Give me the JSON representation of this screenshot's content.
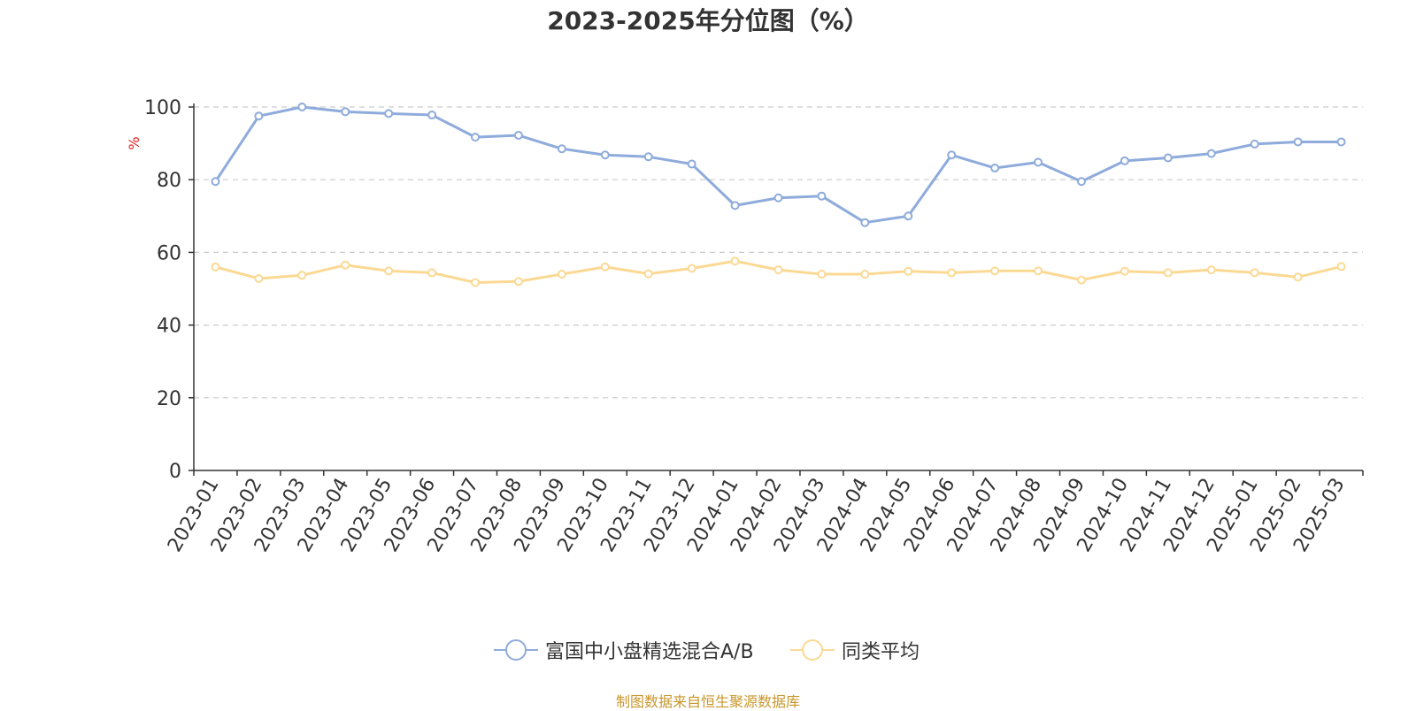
{
  "chart_data": {
    "type": "line",
    "title": "2023-2025年分位图（%）",
    "ylabel": "%",
    "ylim": [
      0,
      100
    ],
    "yticks": [
      0,
      20,
      40,
      60,
      80,
      100
    ],
    "grid": true,
    "legend_position": "bottom",
    "categories": [
      "2023-01",
      "2023-02",
      "2023-03",
      "2023-04",
      "2023-05",
      "2023-06",
      "2023-07",
      "2023-08",
      "2023-09",
      "2023-10",
      "2023-11",
      "2023-12",
      "2024-01",
      "2024-02",
      "2024-03",
      "2024-04",
      "2024-05",
      "2024-06",
      "2024-07",
      "2024-08",
      "2024-09",
      "2024-10",
      "2024-11",
      "2024-12",
      "2025-01",
      "2025-02",
      "2025-03"
    ],
    "series": [
      {
        "name": "富国中小盘精选混合A/B",
        "color": "#8eabdb",
        "values": [
          79.5,
          97.5,
          100.0,
          98.7,
          98.2,
          97.8,
          91.7,
          92.2,
          88.5,
          86.8,
          86.3,
          84.3,
          72.9,
          75.0,
          75.5,
          68.2,
          70.0,
          86.8,
          83.2,
          84.8,
          79.5,
          85.2,
          86.0,
          87.2,
          89.8,
          90.4,
          90.4
        ]
      },
      {
        "name": "同类平均",
        "color": "#fbd994",
        "values": [
          56.0,
          52.8,
          53.7,
          56.5,
          54.9,
          54.4,
          51.7,
          52.0,
          54.0,
          56.0,
          54.1,
          55.6,
          57.6,
          55.2,
          54.0,
          54.0,
          54.8,
          54.4,
          54.9,
          54.9,
          52.4,
          54.8,
          54.4,
          55.2,
          54.4,
          53.2,
          56.1
        ]
      }
    ]
  },
  "footer": {
    "source_text": "制图数据来自恒生聚源数据库",
    "color": "#c9962a"
  },
  "axis_label_color": "#e02020"
}
